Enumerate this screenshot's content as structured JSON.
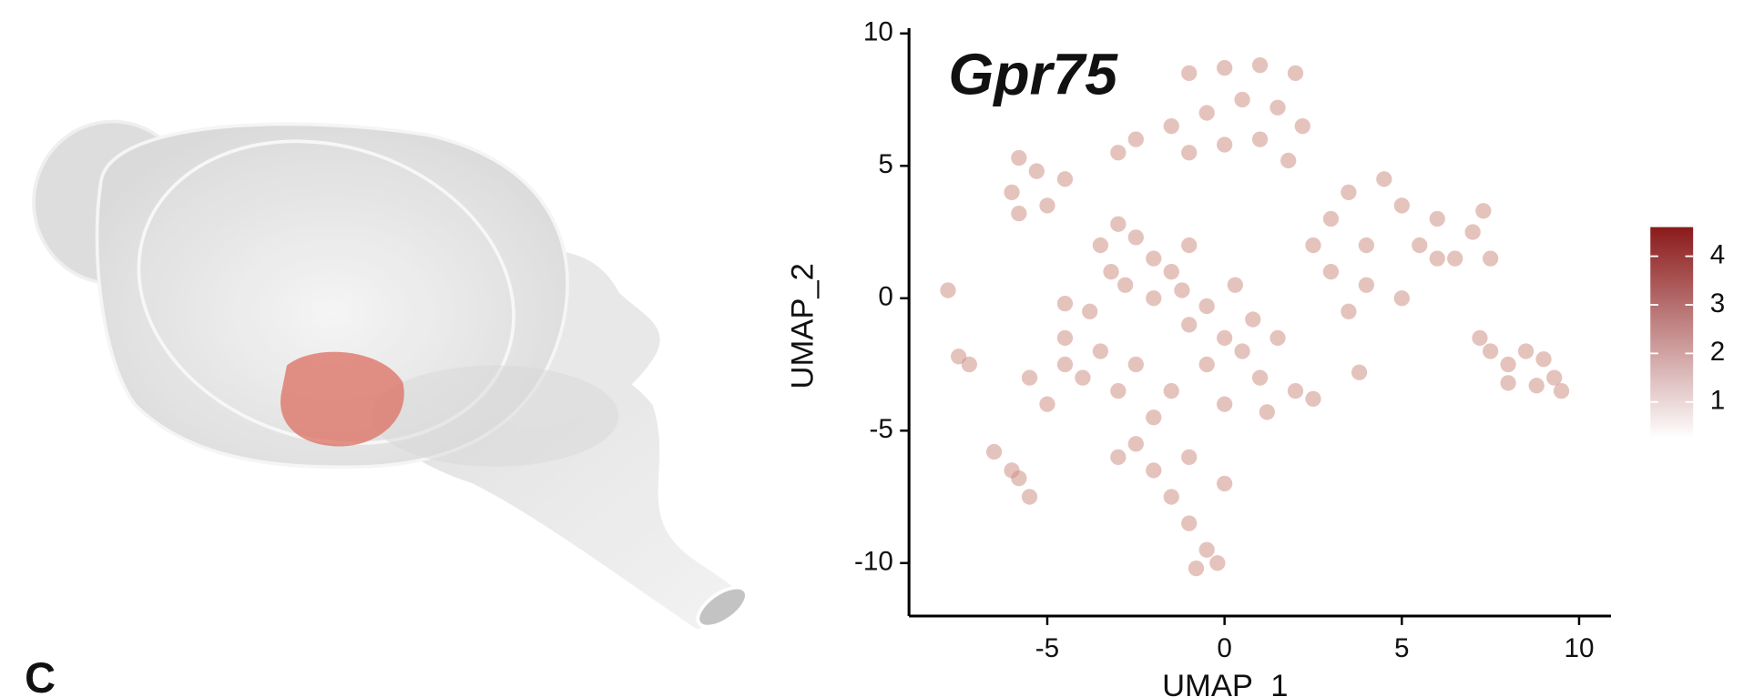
{
  "chart_data": {
    "type": "scatter",
    "title": "Gpr75",
    "panel_label": "C",
    "x_label": "UMAP_1",
    "y_label": "UMAP_2",
    "xlim": [
      -8.9,
      10.9
    ],
    "ylim": [
      -12,
      10.2
    ],
    "xticks": [
      -5,
      0,
      5,
      10
    ],
    "yticks": [
      -10,
      -5,
      0,
      5,
      10
    ],
    "color": "#cf9286",
    "x": [
      -1,
      0,
      1,
      2,
      0.5,
      -0.5,
      1.5,
      2.2,
      -1.5,
      -2.5,
      -3,
      1,
      0,
      -1,
      1.8,
      -5.8,
      -5.3,
      -6,
      -4.5,
      -5,
      -5.8,
      -3.5,
      -3,
      -2.5,
      -2,
      -3.2,
      -2.8,
      -2,
      -1.5,
      -1,
      -1.2,
      -3.8,
      -4.5,
      -1,
      0,
      -0.5,
      0.5,
      1,
      -1.5,
      -2.5,
      -3,
      0,
      1.2,
      -2,
      -3.5,
      -0.5,
      0.3,
      0.8,
      1.5,
      2,
      -4,
      -4.5,
      -2.5,
      -2,
      -1.5,
      -1,
      -0.5,
      -0.2,
      -1,
      -3,
      0,
      -0.8,
      -7.8,
      -7.5,
      -7.2,
      -6.5,
      -6,
      -5.5,
      -5.8,
      -5,
      -5.5,
      -4.5,
      3,
      3.5,
      4.5,
      5,
      4,
      5.5,
      6,
      4,
      5,
      3.5,
      6.5,
      7,
      7.3,
      7.5,
      3,
      2.5,
      6,
      7.2,
      7.5,
      8,
      8.5,
      9,
      9.3,
      9.5,
      8.8,
      8,
      3.8,
      2.5
    ],
    "values": [
      8.5,
      8.7,
      8.8,
      8.5,
      7.5,
      7,
      7.2,
      6.5,
      6.5,
      6,
      5.5,
      6,
      5.8,
      5.5,
      5.2,
      5.3,
      4.8,
      4,
      4.5,
      3.5,
      3.2,
      2,
      2.8,
      2.3,
      1.5,
      1,
      0.5,
      0,
      1,
      2,
      0.3,
      -0.5,
      -0.2,
      -1,
      -1.5,
      -2.5,
      -2,
      -3,
      -3.5,
      -2.5,
      -3.5,
      -4,
      -4.3,
      -4.5,
      -2,
      -0.3,
      0.5,
      -0.8,
      -1.5,
      -3.5,
      -3,
      -1.5,
      -5.5,
      -6.5,
      -7.5,
      -8.5,
      -9.5,
      -10,
      -6,
      -6,
      -7,
      -10.2,
      0.3,
      -2.2,
      -2.5,
      -5.8,
      -6.5,
      -7.5,
      -6.8,
      -4,
      -3,
      -2.5,
      3,
      4,
      4.5,
      3.5,
      2,
      2,
      1.5,
      0.5,
      0,
      -0.5,
      1.5,
      2.5,
      3.3,
      1.5,
      1,
      2,
      3,
      -1.5,
      -2,
      -2.5,
      -2,
      -2.3,
      -3,
      -3.5,
      -3.3,
      -3.2,
      -2.8,
      -3.8
    ],
    "colorbar": {
      "lim": [
        0.25,
        4.6
      ],
      "ticks": [
        1,
        2,
        3,
        4
      ],
      "colors": [
        "#ffffff",
        "#8b1a1a"
      ]
    }
  }
}
